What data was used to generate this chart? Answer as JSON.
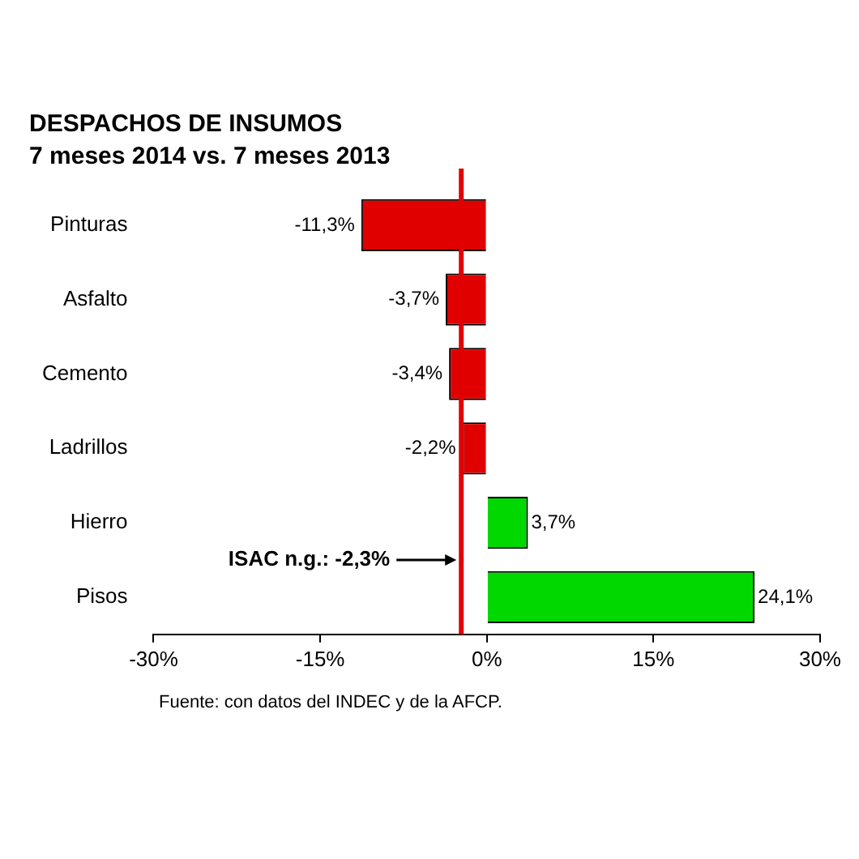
{
  "chart_data": {
    "type": "bar",
    "orientation": "horizontal",
    "title": "DESPACHOS DE INSUMOS",
    "subtitle": "7 meses 2014 vs. 7 meses 2013",
    "categories": [
      "Pinturas",
      "Asfalto",
      "Cemento",
      "Ladrillos",
      "Hierro",
      "Pisos"
    ],
    "values": [
      -11.3,
      -3.7,
      -3.4,
      -2.2,
      3.7,
      24.1
    ],
    "colors": [
      "#e00000",
      "#e00000",
      "#e00000",
      "#e00000",
      "#00d800",
      "#00d800"
    ],
    "value_labels": [
      "-11,3%",
      "-3,7%",
      "-3,4%",
      "-2,2%",
      "3,7%",
      "24,1%"
    ],
    "xlim": [
      -30,
      30
    ],
    "xticks": [
      {
        "value": -30,
        "label": "-30%"
      },
      {
        "value": -15,
        "label": "-15%"
      },
      {
        "value": 0,
        "label": "0%"
      },
      {
        "value": 15,
        "label": "15%"
      },
      {
        "value": 30,
        "label": "30%"
      }
    ],
    "ref_lines": [
      {
        "axis": "x",
        "value": -2.3,
        "label": "ISAC n.g.: -2,3%",
        "color": "#e00000"
      }
    ],
    "annotations": [
      "Fuente: con datos del INDEC y de la AFCP."
    ],
    "grid": false,
    "legend": false
  }
}
